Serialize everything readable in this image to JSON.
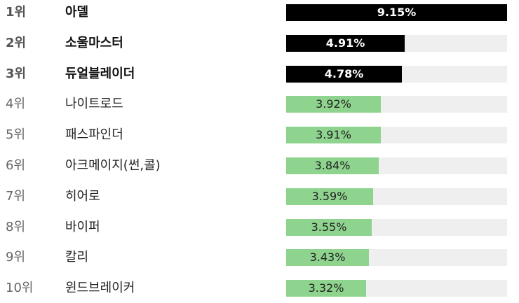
{
  "chart_data": {
    "type": "bar",
    "orientation": "horizontal",
    "max_value": 9.15,
    "highlight_top": 3,
    "colors": {
      "top": "#000000",
      "rest": "#8ed38e",
      "track": "#efefef"
    },
    "rows": [
      {
        "rank": "1위",
        "name": "아델",
        "value": 9.15,
        "label": "9.15%"
      },
      {
        "rank": "2위",
        "name": "소울마스터",
        "value": 4.91,
        "label": "4.91%"
      },
      {
        "rank": "3위",
        "name": "듀얼블레이더",
        "value": 4.78,
        "label": "4.78%"
      },
      {
        "rank": "4위",
        "name": "나이트로드",
        "value": 3.92,
        "label": "3.92%"
      },
      {
        "rank": "5위",
        "name": "패스파인더",
        "value": 3.91,
        "label": "3.91%"
      },
      {
        "rank": "6위",
        "name": "아크메이지(썬,콜)",
        "value": 3.84,
        "label": "3.84%"
      },
      {
        "rank": "7위",
        "name": "히어로",
        "value": 3.59,
        "label": "3.59%"
      },
      {
        "rank": "8위",
        "name": "바이퍼",
        "value": 3.55,
        "label": "3.55%"
      },
      {
        "rank": "9위",
        "name": "칼리",
        "value": 3.43,
        "label": "3.43%"
      },
      {
        "rank": "10위",
        "name": "윈드브레이커",
        "value": 3.32,
        "label": "3.32%"
      }
    ]
  }
}
